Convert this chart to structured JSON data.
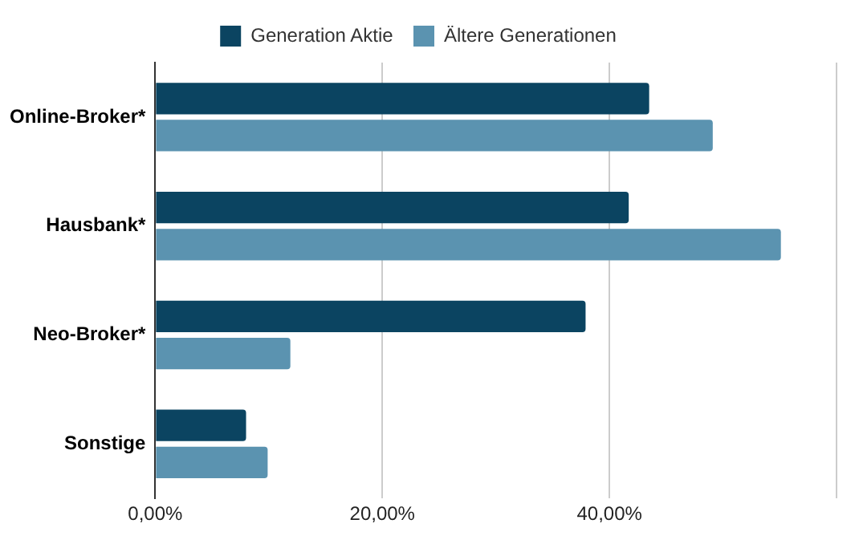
{
  "chart_data": {
    "type": "bar",
    "orientation": "horizontal",
    "categories": [
      "Online-Broker*",
      "Hausbank*",
      "Neo-Broker*",
      "Sonstige"
    ],
    "series": [
      {
        "name": "Generation Aktie",
        "color": "#0b4461",
        "values": [
          43.5,
          41.7,
          37.9,
          8.0
        ]
      },
      {
        "name": "Ältere Generationen",
        "color": "#5b93b0",
        "values": [
          49.1,
          55.1,
          11.9,
          9.9
        ]
      }
    ],
    "xlim": [
      0,
      60
    ],
    "xticks": [
      {
        "value": 0,
        "label": "0,00%"
      },
      {
        "value": 20,
        "label": "20,00%"
      },
      {
        "value": 40,
        "label": "40,00%"
      },
      {
        "value": 60,
        "label": null
      }
    ],
    "grid": "x",
    "legend": "top"
  }
}
